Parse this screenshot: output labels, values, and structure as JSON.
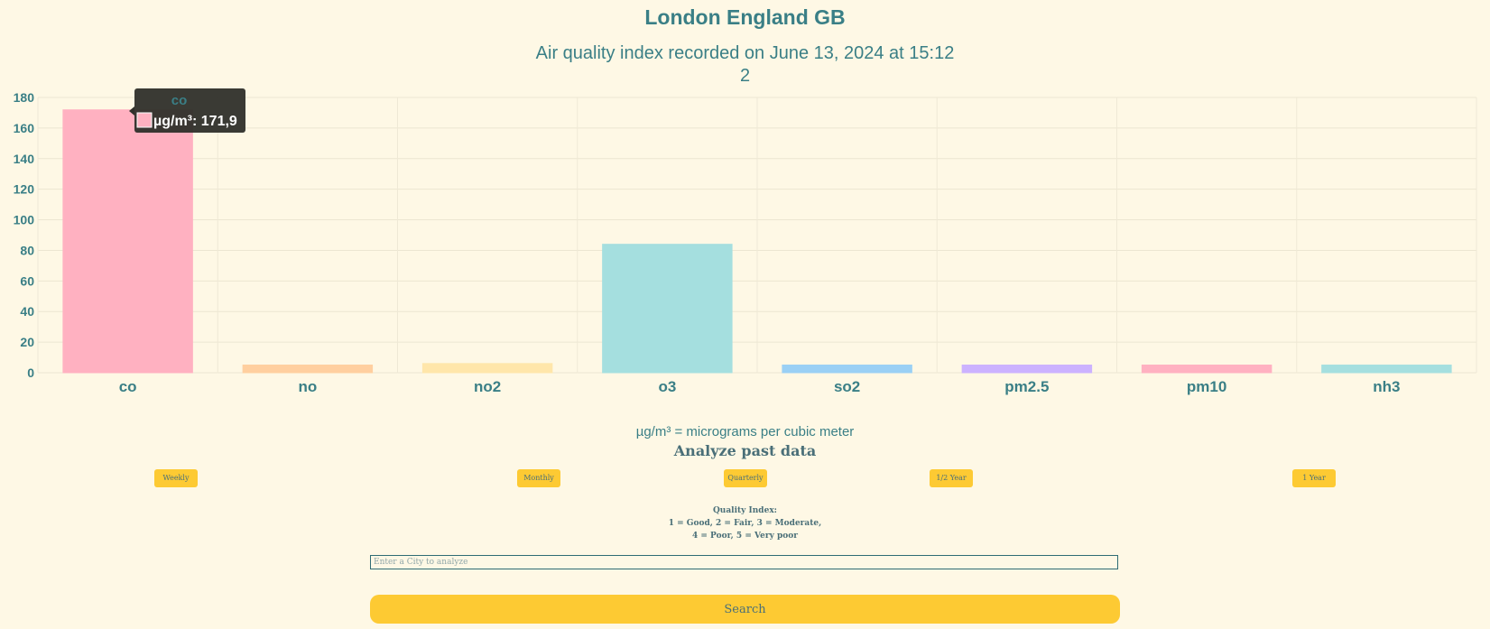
{
  "header": {
    "title": "London England GB",
    "subtitle_line1": "Air quality index recorded on June 13, 2024 at 15:12",
    "subtitle_line2": "2"
  },
  "chart_data": {
    "type": "bar",
    "categories": [
      "co",
      "no",
      "no2",
      "o3",
      "so2",
      "pm2.5",
      "pm10",
      "nh3"
    ],
    "values": [
      171.9,
      5,
      6,
      84,
      5,
      5,
      5,
      5
    ],
    "ylim": [
      0,
      180
    ],
    "yticks": [
      "0",
      "20",
      "40",
      "60",
      "80",
      "100",
      "120",
      "140",
      "160",
      "180"
    ],
    "grid": true,
    "bar_colors": [
      "#ffb1c1",
      "#ffcf9f",
      "#ffe6aa",
      "#a5dfdf",
      "#9ad0f5",
      "#ccb2ff",
      "#ffb1c1",
      "#a5dfdf"
    ],
    "bar_border_colors": [
      "#ff6384",
      "#ff9f40",
      "#ffcd56",
      "#4bc0c0",
      "#36a2eb",
      "#9966ff",
      "#ff6384",
      "#4bc0c0"
    ],
    "tooltip": {
      "title": "co",
      "label": "µg/m³: 171,9",
      "swatch_color": "#ffb1c1"
    }
  },
  "unit_note": "µg/m³ = micrograms per cubic meter",
  "analyze": {
    "heading": "Analyze past data",
    "buttons": [
      "Weekly",
      "Monthly",
      "Quarterly",
      "1/2 Year",
      "1 Year"
    ]
  },
  "quality_index": {
    "line1": "Quality Index:",
    "line2": "1 = Good, 2 = Fair, 3 = Moderate,",
    "line3": "4 = Poor, 5 = Very poor"
  },
  "search": {
    "placeholder": "Enter a City to analyze",
    "button_label": "Search"
  },
  "colors": {
    "text": "#3a7f86",
    "background": "#fef8e5",
    "accent": "#fdca33"
  }
}
